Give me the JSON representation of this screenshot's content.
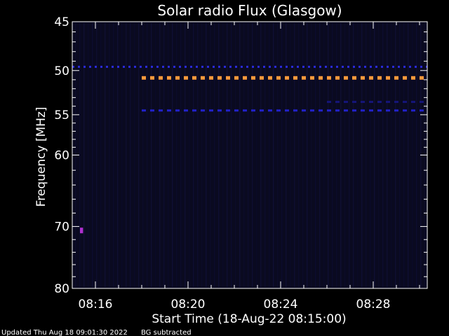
{
  "chart_data": {
    "type": "heatmap",
    "title": "Solar radio Flux (Glasgow)",
    "ylabel": "Frequency [MHz]",
    "xlabel": "Start Time (18-Aug-22 08:15:00)",
    "y_scale": "log",
    "y_direction": "inverted",
    "ylim": [
      45,
      80
    ],
    "xlim": [
      "08:15:00",
      "08:30:20"
    ],
    "y_ticks": [
      {
        "value": 45,
        "label": "45"
      },
      {
        "value": 50,
        "label": "50"
      },
      {
        "value": 55,
        "label": "55"
      },
      {
        "value": 60,
        "label": "60"
      },
      {
        "value": 70,
        "label": "70"
      },
      {
        "value": 80,
        "label": "80"
      }
    ],
    "x_ticks": [
      {
        "value": "08:16",
        "label": "08:16"
      },
      {
        "value": "08:20",
        "label": "08:20"
      },
      {
        "value": "08:24",
        "label": "08:24"
      },
      {
        "value": "08:28",
        "label": "08:28"
      }
    ],
    "features": [
      {
        "name": "band-49.6",
        "freq": 49.6,
        "start": "08:15:00",
        "end": "08:30:20",
        "color": "#2a2ad8"
      },
      {
        "name": "band-50.8",
        "freq": 50.8,
        "start": "08:18:00",
        "end": "08:30:20",
        "color": "#ff9a3c"
      },
      {
        "name": "band-54.5",
        "freq": 54.5,
        "start": "08:18:00",
        "end": "08:30:20",
        "color": "#2222cc"
      },
      {
        "name": "band-53.5",
        "freq": 53.5,
        "start": "08:26:00",
        "end": "08:30:20",
        "color": "#15157a"
      },
      {
        "name": "spot-70.6",
        "freq": 70.6,
        "start": "08:15:20",
        "end": "08:15:28",
        "color": "#b030d0"
      }
    ],
    "colors": {
      "background": "#000000",
      "plot_area": "#0a0a20",
      "foreground": "#ffffff"
    }
  },
  "footer": {
    "updated": "Updated Thu Aug 18 09:01:30 2022",
    "note": "BG subtracted"
  }
}
